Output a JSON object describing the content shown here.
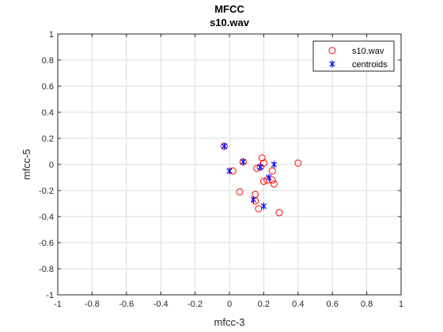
{
  "chart_data": {
    "type": "scatter",
    "title": "MFCC",
    "subtitle": "s10.wav",
    "xlabel": "mfcc-3",
    "ylabel": "mfcc-5",
    "xlim": [
      -1,
      1
    ],
    "ylim": [
      -1,
      1
    ],
    "xticks": [
      -1,
      -0.8,
      -0.6,
      -0.4,
      -0.2,
      0,
      0.2,
      0.4,
      0.6,
      0.8,
      1
    ],
    "yticks": [
      -1,
      -0.8,
      -0.6,
      -0.4,
      -0.2,
      0,
      0.2,
      0.4,
      0.6,
      0.8,
      1
    ],
    "xtick_labels": [
      "-1",
      "-0.8",
      "-0.6",
      "-0.4",
      "-0.2",
      "0",
      "0.2",
      "0.4",
      "0.6",
      "0.8",
      "1"
    ],
    "ytick_labels": [
      "-1",
      "-0.8",
      "-0.6",
      "-0.4",
      "-0.2",
      "0",
      "0.2",
      "0.4",
      "0.6",
      "0.8",
      "1"
    ],
    "grid": true,
    "legend_position": "top-right",
    "series": [
      {
        "name": "s10.wav",
        "marker": "circle",
        "color": "#ff0000",
        "points": [
          [
            -0.03,
            0.14
          ],
          [
            0.02,
            -0.05
          ],
          [
            0.08,
            0.02
          ],
          [
            0.06,
            -0.21
          ],
          [
            0.15,
            -0.23
          ],
          [
            0.15,
            -0.28
          ],
          [
            0.17,
            -0.34
          ],
          [
            0.16,
            -0.03
          ],
          [
            0.18,
            -0.02
          ],
          [
            0.19,
            0.05
          ],
          [
            0.2,
            0.01
          ],
          [
            0.2,
            -0.13
          ],
          [
            0.22,
            -0.12
          ],
          [
            0.25,
            -0.05
          ],
          [
            0.25,
            -0.12
          ],
          [
            0.26,
            -0.15
          ],
          [
            0.29,
            -0.37
          ],
          [
            0.4,
            0.01
          ]
        ]
      },
      {
        "name": "centroids",
        "marker": "asterisk",
        "color": "#0000ff",
        "points": [
          [
            -0.03,
            0.14
          ],
          [
            0.0,
            -0.05
          ],
          [
            0.08,
            0.02
          ],
          [
            0.14,
            -0.27
          ],
          [
            0.18,
            -0.02
          ],
          [
            0.2,
            -0.32
          ],
          [
            0.23,
            -0.1
          ],
          [
            0.26,
            0.0
          ]
        ]
      }
    ]
  }
}
